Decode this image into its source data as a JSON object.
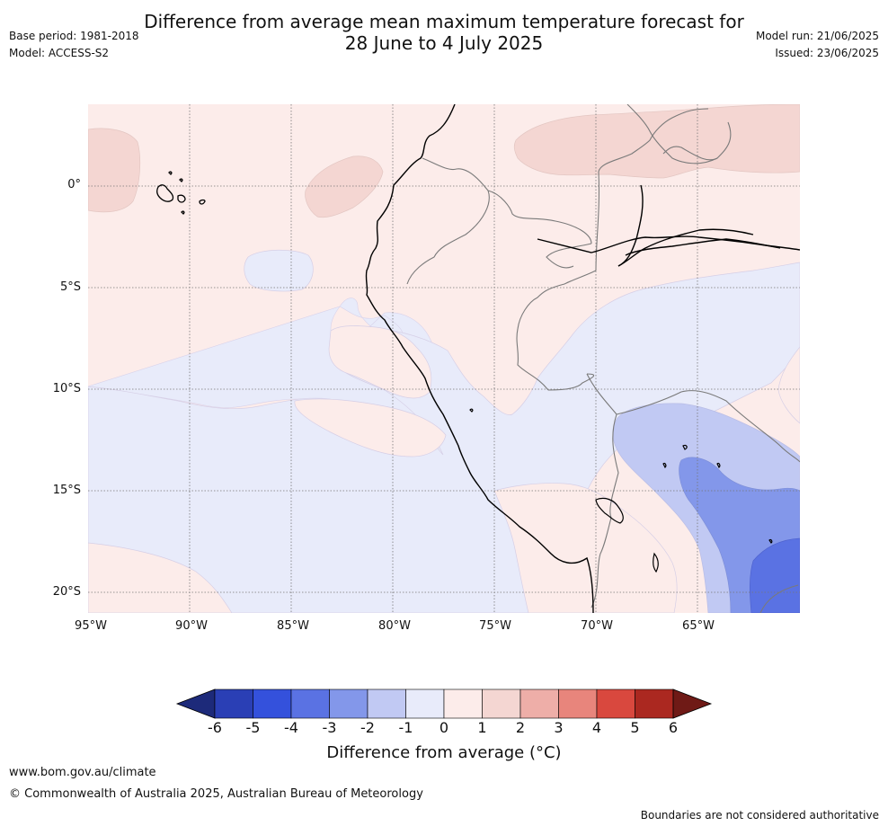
{
  "title": {
    "line1": "Difference from average mean maximum temperature forecast for",
    "line2": "28 June to 4 July 2025"
  },
  "meta": {
    "base_period": "Base period: 1981-2018",
    "model": "Model: ACCESS-S2",
    "model_run": "Model run: 21/06/2025",
    "issued": "Issued: 23/06/2025"
  },
  "map": {
    "lat_labels": [
      "0°",
      "5°S",
      "10°S",
      "15°S",
      "20°S"
    ],
    "lon_labels": [
      "95°W",
      "90°W",
      "85°W",
      "80°W",
      "75°W",
      "70°W",
      "65°W"
    ],
    "legend": {
      "ticks": [
        "-6",
        "-5",
        "-4",
        "-3",
        "-2",
        "-1",
        "0",
        "1",
        "2",
        "3",
        "4",
        "5",
        "6"
      ],
      "label": "Difference from average (°C)",
      "colors": [
        "#1d2a7a",
        "#2a3fb5",
        "#3451dc",
        "#5a72e3",
        "#8397ea",
        "#c1c9f3",
        "#e8ebfa",
        "#fcecea",
        "#f4d6d2",
        "#eeaea8",
        "#e8857c",
        "#d9483e",
        "#ab2820",
        "#6f1a16"
      ]
    }
  },
  "footer": {
    "url": "www.bom.gov.au/climate",
    "copyright": "© Commonwealth of Australia 2025, Australian Bureau of Meteorology",
    "disclaimer": "Boundaries are not considered authoritative"
  }
}
